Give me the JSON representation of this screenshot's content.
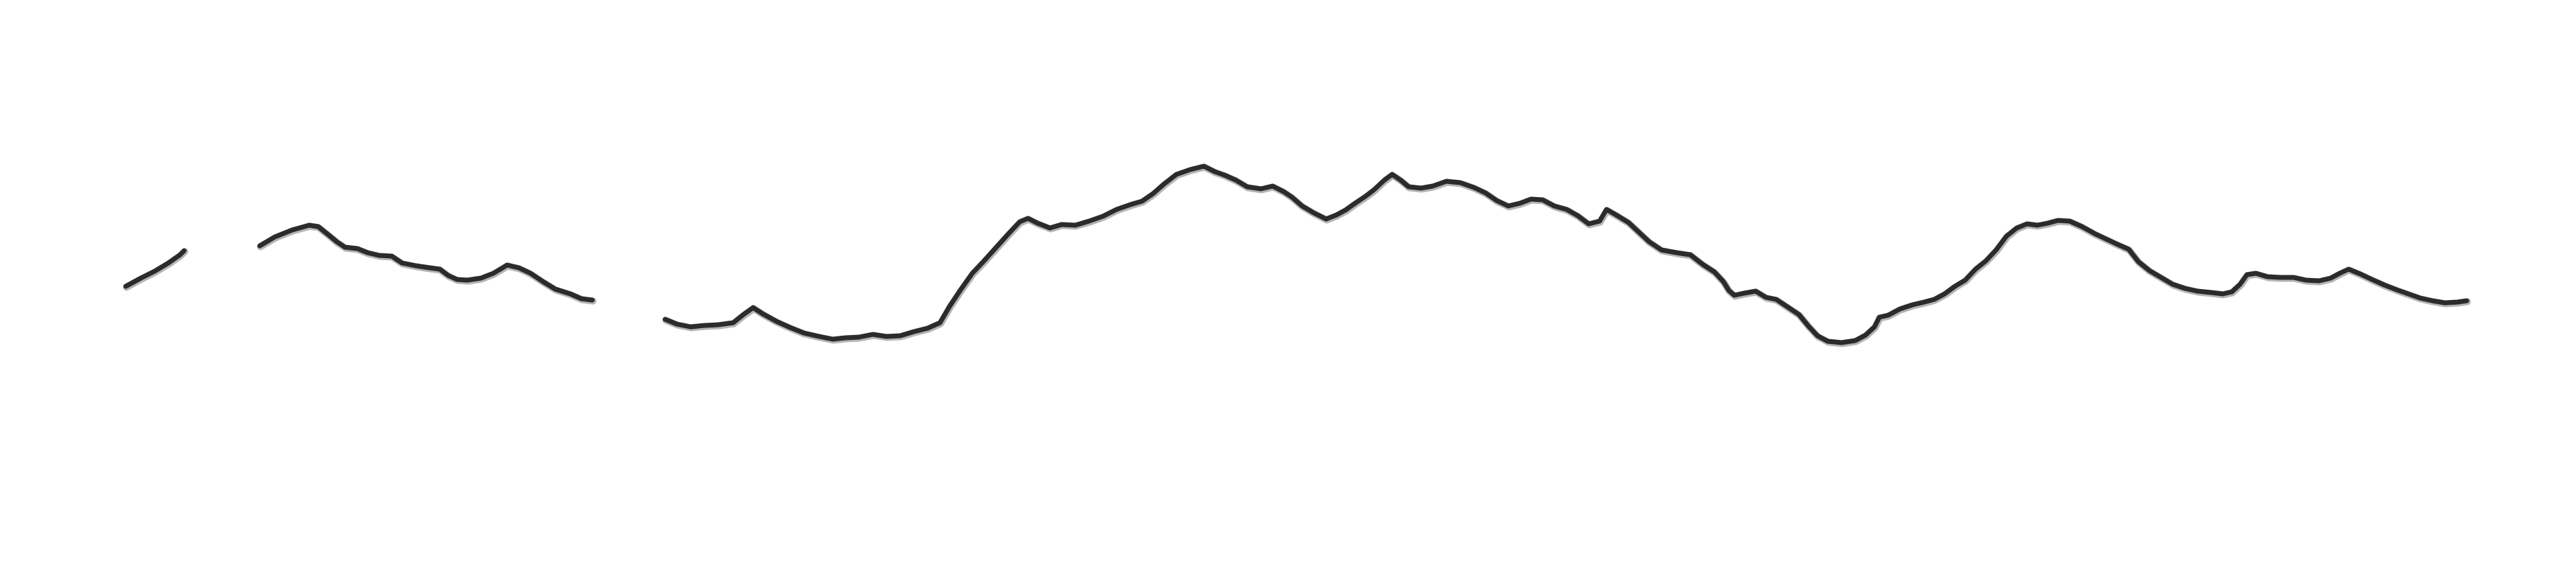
{
  "drawing": {
    "ink_color": "#2b2b2b",
    "background_color": "#ffffff"
  }
}
